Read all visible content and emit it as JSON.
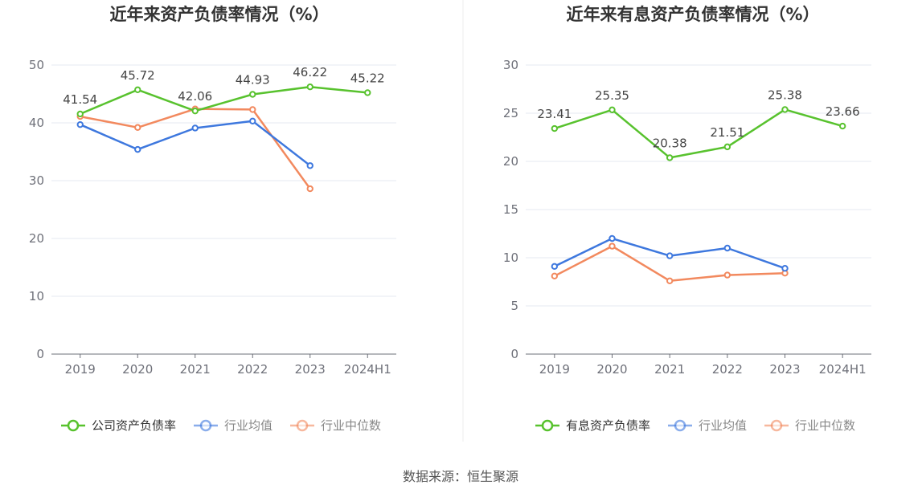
{
  "source": "数据来源：恒生聚源",
  "colors": {
    "company": "#58c22e",
    "avg": "#3e78de",
    "median": "#f2895e"
  },
  "chart_data": [
    {
      "type": "line",
      "title": "近年来资产负债率情况（%）",
      "categories": [
        "2019",
        "2020",
        "2021",
        "2022",
        "2023",
        "2024H1"
      ],
      "ylim": [
        0,
        50
      ],
      "yticks": [
        0,
        10,
        20,
        30,
        40,
        50
      ],
      "grid": true,
      "legend_position": "bottom",
      "series": [
        {
          "name": "公司资产负债率",
          "values": [
            41.54,
            45.72,
            42.06,
            44.93,
            46.22,
            45.22
          ],
          "labels": [
            "41.54",
            "45.72",
            "42.06",
            "44.93",
            "46.22",
            "45.22"
          ]
        },
        {
          "name": "行业均值",
          "values": [
            39.7,
            35.4,
            39.1,
            40.3,
            32.6,
            null
          ]
        },
        {
          "name": "行业中位数",
          "values": [
            41.1,
            39.2,
            42.4,
            42.3,
            28.6,
            null
          ]
        }
      ]
    },
    {
      "type": "line",
      "title": "近年来有息资产负债率情况（%）",
      "categories": [
        "2019",
        "2020",
        "2021",
        "2022",
        "2023",
        "2024H1"
      ],
      "ylim": [
        0,
        30
      ],
      "yticks": [
        0,
        5,
        10,
        15,
        20,
        25,
        30
      ],
      "grid": true,
      "legend_position": "bottom",
      "series": [
        {
          "name": "有息资产负债率",
          "values": [
            23.41,
            25.35,
            20.38,
            21.51,
            25.38,
            23.66
          ],
          "labels": [
            "23.41",
            "25.35",
            "20.38",
            "21.51",
            "25.38",
            "23.66"
          ]
        },
        {
          "name": "行业均值",
          "values": [
            9.1,
            12.0,
            10.2,
            11.0,
            8.9,
            null
          ]
        },
        {
          "name": "行业中位数",
          "values": [
            8.1,
            11.2,
            7.6,
            8.2,
            8.4,
            null
          ]
        }
      ]
    }
  ]
}
